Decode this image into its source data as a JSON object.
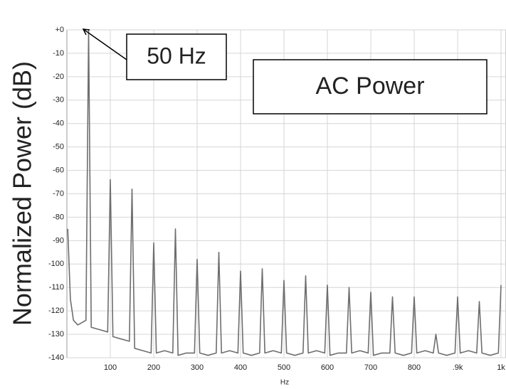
{
  "chart_data": {
    "type": "line",
    "x_label": "Hz",
    "y_label": "Normalized Power (dB)",
    "annotations": [
      {
        "text": "50 Hz"
      },
      {
        "text": "AC Power"
      }
    ],
    "xlim": [
      0,
      1000
    ],
    "ylim": [
      -140,
      0
    ],
    "xticks": [
      100,
      200,
      300,
      400,
      500,
      600,
      700,
      800,
      {
        "value": 900,
        "label": ".9k"
      },
      {
        "value": 1000,
        "label": "1k"
      }
    ],
    "yticks": [
      {
        "value": 0,
        "label": "+0"
      },
      -10,
      -20,
      -30,
      -40,
      -50,
      -60,
      -70,
      -80,
      -90,
      -100,
      -110,
      -120,
      -130,
      -140
    ],
    "grid": true,
    "series": [
      {
        "color": "#6e6e6e",
        "x": [
          2,
          8,
          15,
          25,
          35,
          44,
          50,
          56,
          75,
          94,
          100,
          106,
          125,
          144,
          150,
          156,
          175,
          194,
          200,
          206,
          225,
          244,
          250,
          256,
          275,
          294,
          300,
          306,
          325,
          344,
          350,
          356,
          375,
          394,
          400,
          406,
          425,
          444,
          450,
          456,
          475,
          494,
          500,
          506,
          525,
          544,
          550,
          556,
          575,
          594,
          600,
          606,
          625,
          644,
          650,
          656,
          675,
          694,
          700,
          706,
          725,
          744,
          750,
          756,
          775,
          794,
          800,
          806,
          825,
          844,
          850,
          856,
          875,
          894,
          900,
          906,
          925,
          944,
          950,
          956,
          975,
          994,
          1000
        ],
        "values": [
          -85,
          -115,
          -124,
          -126,
          -125,
          -124,
          0,
          -127,
          -128,
          -129,
          -64,
          -131,
          -132,
          -133,
          -68,
          -136,
          -137,
          -138,
          -91,
          -138,
          -137,
          -138,
          -85,
          -139,
          -138,
          -138,
          -98,
          -138,
          -139,
          -138,
          -95,
          -138,
          -137,
          -138,
          -103,
          -138,
          -139,
          -138,
          -102,
          -138,
          -137,
          -138,
          -107,
          -138,
          -139,
          -138,
          -105,
          -138,
          -137,
          -138,
          -109,
          -139,
          -138,
          -138,
          -110,
          -138,
          -137,
          -138,
          -112,
          -139,
          -138,
          -138,
          -114,
          -138,
          -139,
          -138,
          -114,
          -138,
          -137,
          -138,
          -130,
          -138,
          -139,
          -138,
          -114,
          -138,
          -137,
          -138,
          -116,
          -138,
          -139,
          -138,
          -109
        ]
      }
    ]
  }
}
